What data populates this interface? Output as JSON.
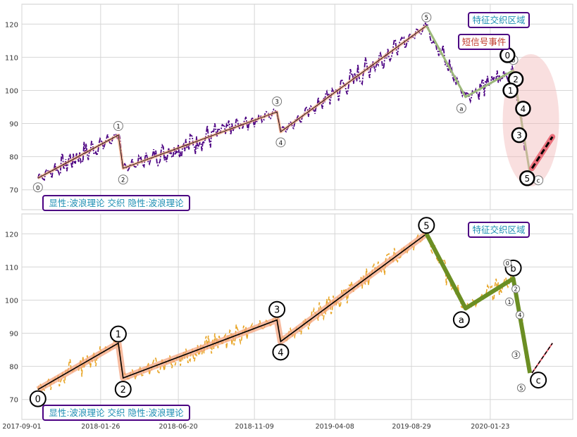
{
  "chart_data": [
    {
      "type": "line",
      "panel": "top",
      "ylim": [
        64,
        126
      ],
      "xlim": [
        "2017-09-01",
        "2020-06-25"
      ],
      "yticks": [
        70,
        80,
        90,
        100,
        110,
        120
      ],
      "grid": true,
      "annotation_labels": {
        "region": "特征交织区域",
        "short_signal": "短信号事件",
        "legend_box": "显性:波浪理论 交织 隐性:波浪理论"
      },
      "wave_points": [
        {
          "label": "0",
          "date": "2017-10-01",
          "value": 73.5
        },
        {
          "label": "1",
          "date": "2018-02-28",
          "value": 86.5
        },
        {
          "label": "2",
          "date": "2018-03-09",
          "value": 76.5
        },
        {
          "label": "3",
          "date": "2018-12-21",
          "value": 93.5
        },
        {
          "label": "4",
          "date": "2018-12-28",
          "value": 87.5
        },
        {
          "label": "5",
          "date": "2019-09-26",
          "value": 119.5
        },
        {
          "label": "a",
          "date": "2019-12-08",
          "value": 98.0
        },
        {
          "label": "b",
          "date": "2020-03-06",
          "value": 106.0
        },
        {
          "label": "c",
          "date": "2020-04-06",
          "value": 75.0
        }
      ],
      "short_signal_points": [
        {
          "label": "0",
          "date": "2020-03-03",
          "value": 108.5
        },
        {
          "label": "2",
          "date": "2020-03-08",
          "value": 105.5
        },
        {
          "label": "1",
          "date": "2020-03-06",
          "value": 100.0
        },
        {
          "label": "4",
          "date": "2020-03-19",
          "value": 94.5
        },
        {
          "label": "3",
          "date": "2020-03-17",
          "value": 86.5
        },
        {
          "label": "5",
          "date": "2020-03-28",
          "value": 73.5
        }
      ]
    },
    {
      "type": "line",
      "panel": "bottom",
      "ylim": [
        64,
        126
      ],
      "xlim": [
        "2017-09-01",
        "2020-06-25"
      ],
      "yticks": [
        70,
        80,
        90,
        100,
        110,
        120
      ],
      "xticks": [
        "2017-09-01",
        "2018-01-26",
        "2018-06-20",
        "2018-11-09",
        "2019-04-08",
        "2019-08-29",
        "2020-01-23"
      ],
      "grid": true,
      "annotation_labels": {
        "region": "特征交织区域",
        "legend_box": "显性:波浪理论 交织 隐性:波浪理论"
      },
      "wave_points": [
        {
          "label": "0",
          "date": "2017-10-01",
          "value": 73.0
        },
        {
          "label": "1",
          "date": "2018-02-28",
          "value": 87.0
        },
        {
          "label": "2",
          "date": "2018-03-09",
          "value": 76.5
        },
        {
          "label": "3",
          "date": "2018-12-21",
          "value": 94.0
        },
        {
          "label": "4",
          "date": "2018-12-28",
          "value": 87.5
        },
        {
          "label": "5",
          "date": "2019-09-26",
          "value": 120.0
        },
        {
          "label": "a",
          "date": "2019-12-08",
          "value": 97.5
        },
        {
          "label": "b",
          "date": "2020-03-06",
          "value": 106.5
        },
        {
          "label": "c",
          "date": "2020-04-06",
          "value": 78.0
        }
      ],
      "minor_points": [
        {
          "label": "0",
          "date": "2020-03-03",
          "value": 109.0
        },
        {
          "label": "2",
          "date": "2020-03-08",
          "value": 105.5
        },
        {
          "label": "1",
          "date": "2020-03-04",
          "value": 99.5
        },
        {
          "label": "4",
          "date": "2020-03-13",
          "value": 95.5
        },
        {
          "label": "3",
          "date": "2020-03-11",
          "value": 83.5
        },
        {
          "label": "5",
          "date": "2020-03-17",
          "value": 73.5
        }
      ]
    }
  ],
  "colors": {
    "price_top": "#4b0082",
    "price_bottom": "#e8a628",
    "wave_top": "#f4a582",
    "wave_bottom": "#f4a582",
    "correction": "#6b8e23",
    "correction_light": "#9cb87a",
    "region_fill": "#f2b8b8",
    "label_box_border": "#4b0082",
    "label_text": "#1f8fb4",
    "signal_text": "#c0392b"
  }
}
